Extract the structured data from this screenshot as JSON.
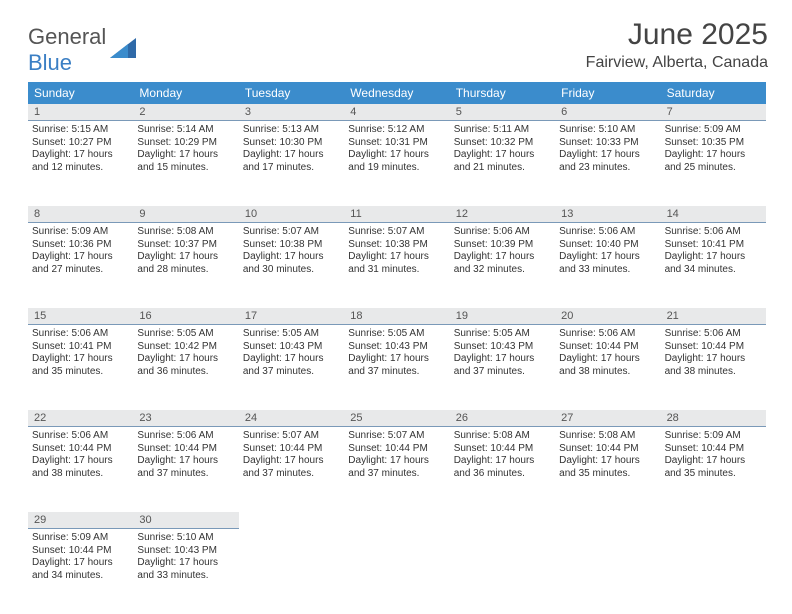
{
  "brand": {
    "gray": "General",
    "blue": "Blue"
  },
  "title": "June 2025",
  "location": "Fairview, Alberta, Canada",
  "daynames": [
    "Sunday",
    "Monday",
    "Tuesday",
    "Wednesday",
    "Thursday",
    "Friday",
    "Saturday"
  ],
  "colors": {
    "header_bg": "#3b8ccc",
    "header_text": "#ffffff",
    "num_bg": "#e8e9ea",
    "cell_border": "#7a99b8",
    "logo_gray": "#555555",
    "logo_blue": "#3b7fc4"
  },
  "cells": [
    {
      "n": "1",
      "sr": "Sunrise: 5:15 AM",
      "ss": "Sunset: 10:27 PM",
      "d1": "Daylight: 17 hours",
      "d2": "and 12 minutes."
    },
    {
      "n": "2",
      "sr": "Sunrise: 5:14 AM",
      "ss": "Sunset: 10:29 PM",
      "d1": "Daylight: 17 hours",
      "d2": "and 15 minutes."
    },
    {
      "n": "3",
      "sr": "Sunrise: 5:13 AM",
      "ss": "Sunset: 10:30 PM",
      "d1": "Daylight: 17 hours",
      "d2": "and 17 minutes."
    },
    {
      "n": "4",
      "sr": "Sunrise: 5:12 AM",
      "ss": "Sunset: 10:31 PM",
      "d1": "Daylight: 17 hours",
      "d2": "and 19 minutes."
    },
    {
      "n": "5",
      "sr": "Sunrise: 5:11 AM",
      "ss": "Sunset: 10:32 PM",
      "d1": "Daylight: 17 hours",
      "d2": "and 21 minutes."
    },
    {
      "n": "6",
      "sr": "Sunrise: 5:10 AM",
      "ss": "Sunset: 10:33 PM",
      "d1": "Daylight: 17 hours",
      "d2": "and 23 minutes."
    },
    {
      "n": "7",
      "sr": "Sunrise: 5:09 AM",
      "ss": "Sunset: 10:35 PM",
      "d1": "Daylight: 17 hours",
      "d2": "and 25 minutes."
    },
    {
      "n": "8",
      "sr": "Sunrise: 5:09 AM",
      "ss": "Sunset: 10:36 PM",
      "d1": "Daylight: 17 hours",
      "d2": "and 27 minutes."
    },
    {
      "n": "9",
      "sr": "Sunrise: 5:08 AM",
      "ss": "Sunset: 10:37 PM",
      "d1": "Daylight: 17 hours",
      "d2": "and 28 minutes."
    },
    {
      "n": "10",
      "sr": "Sunrise: 5:07 AM",
      "ss": "Sunset: 10:38 PM",
      "d1": "Daylight: 17 hours",
      "d2": "and 30 minutes."
    },
    {
      "n": "11",
      "sr": "Sunrise: 5:07 AM",
      "ss": "Sunset: 10:38 PM",
      "d1": "Daylight: 17 hours",
      "d2": "and 31 minutes."
    },
    {
      "n": "12",
      "sr": "Sunrise: 5:06 AM",
      "ss": "Sunset: 10:39 PM",
      "d1": "Daylight: 17 hours",
      "d2": "and 32 minutes."
    },
    {
      "n": "13",
      "sr": "Sunrise: 5:06 AM",
      "ss": "Sunset: 10:40 PM",
      "d1": "Daylight: 17 hours",
      "d2": "and 33 minutes."
    },
    {
      "n": "14",
      "sr": "Sunrise: 5:06 AM",
      "ss": "Sunset: 10:41 PM",
      "d1": "Daylight: 17 hours",
      "d2": "and 34 minutes."
    },
    {
      "n": "15",
      "sr": "Sunrise: 5:06 AM",
      "ss": "Sunset: 10:41 PM",
      "d1": "Daylight: 17 hours",
      "d2": "and 35 minutes."
    },
    {
      "n": "16",
      "sr": "Sunrise: 5:05 AM",
      "ss": "Sunset: 10:42 PM",
      "d1": "Daylight: 17 hours",
      "d2": "and 36 minutes."
    },
    {
      "n": "17",
      "sr": "Sunrise: 5:05 AM",
      "ss": "Sunset: 10:43 PM",
      "d1": "Daylight: 17 hours",
      "d2": "and 37 minutes."
    },
    {
      "n": "18",
      "sr": "Sunrise: 5:05 AM",
      "ss": "Sunset: 10:43 PM",
      "d1": "Daylight: 17 hours",
      "d2": "and 37 minutes."
    },
    {
      "n": "19",
      "sr": "Sunrise: 5:05 AM",
      "ss": "Sunset: 10:43 PM",
      "d1": "Daylight: 17 hours",
      "d2": "and 37 minutes."
    },
    {
      "n": "20",
      "sr": "Sunrise: 5:06 AM",
      "ss": "Sunset: 10:44 PM",
      "d1": "Daylight: 17 hours",
      "d2": "and 38 minutes."
    },
    {
      "n": "21",
      "sr": "Sunrise: 5:06 AM",
      "ss": "Sunset: 10:44 PM",
      "d1": "Daylight: 17 hours",
      "d2": "and 38 minutes."
    },
    {
      "n": "22",
      "sr": "Sunrise: 5:06 AM",
      "ss": "Sunset: 10:44 PM",
      "d1": "Daylight: 17 hours",
      "d2": "and 38 minutes."
    },
    {
      "n": "23",
      "sr": "Sunrise: 5:06 AM",
      "ss": "Sunset: 10:44 PM",
      "d1": "Daylight: 17 hours",
      "d2": "and 37 minutes."
    },
    {
      "n": "24",
      "sr": "Sunrise: 5:07 AM",
      "ss": "Sunset: 10:44 PM",
      "d1": "Daylight: 17 hours",
      "d2": "and 37 minutes."
    },
    {
      "n": "25",
      "sr": "Sunrise: 5:07 AM",
      "ss": "Sunset: 10:44 PM",
      "d1": "Daylight: 17 hours",
      "d2": "and 37 minutes."
    },
    {
      "n": "26",
      "sr": "Sunrise: 5:08 AM",
      "ss": "Sunset: 10:44 PM",
      "d1": "Daylight: 17 hours",
      "d2": "and 36 minutes."
    },
    {
      "n": "27",
      "sr": "Sunrise: 5:08 AM",
      "ss": "Sunset: 10:44 PM",
      "d1": "Daylight: 17 hours",
      "d2": "and 35 minutes."
    },
    {
      "n": "28",
      "sr": "Sunrise: 5:09 AM",
      "ss": "Sunset: 10:44 PM",
      "d1": "Daylight: 17 hours",
      "d2": "and 35 minutes."
    },
    {
      "n": "29",
      "sr": "Sunrise: 5:09 AM",
      "ss": "Sunset: 10:44 PM",
      "d1": "Daylight: 17 hours",
      "d2": "and 34 minutes."
    },
    {
      "n": "30",
      "sr": "Sunrise: 5:10 AM",
      "ss": "Sunset: 10:43 PM",
      "d1": "Daylight: 17 hours",
      "d2": "and 33 minutes."
    }
  ]
}
